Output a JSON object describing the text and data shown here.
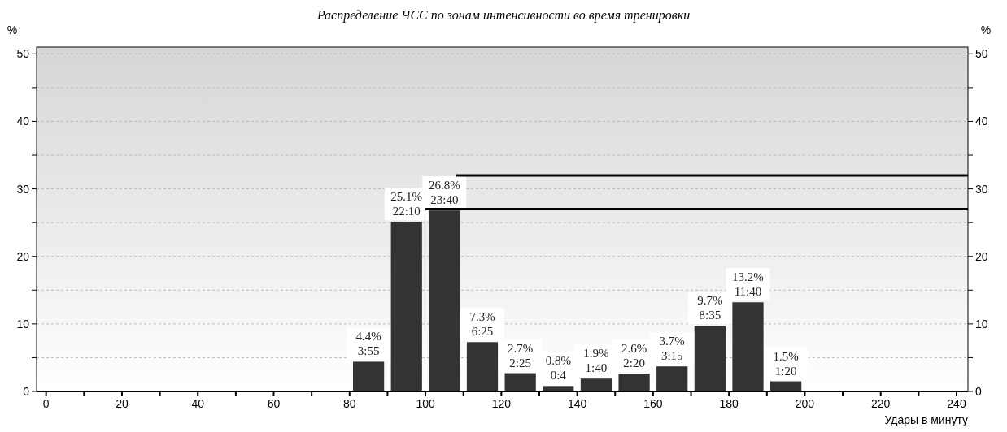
{
  "chart_data": {
    "type": "histogram",
    "title": "Распределение ЧСС по зонам интенсивности во время тренировки",
    "xlabel": "Удары в минуту",
    "ylabel": "%",
    "y2label": "%",
    "bins": [
      80,
      90,
      100,
      110,
      120,
      130,
      140,
      150,
      160,
      170,
      180,
      190,
      200
    ],
    "series": [
      {
        "color": "#333333",
        "values": [
          4.4,
          25.1,
          26.8,
          7.3,
          2.7,
          0.8,
          1.9,
          2.6,
          3.7,
          9.7,
          13.2,
          1.5
        ],
        "value_labels": [
          "4.4%\n3:55",
          "25.1%\n22:10",
          "26.8%\n23:40",
          "7.3%\n6:25",
          "2.7%\n2:25",
          "0.8%\n0:4",
          "1.9%\n1:40",
          "2.6%\n2:20",
          "3.7%\n3:15",
          "9.7%\n8:35",
          "13.2%\n11:40",
          "1.5%\n1:20"
        ]
      },
      {
        "type": "line",
        "color": "#000000",
        "x": [
          100,
          243
        ],
        "values": [
          27,
          27
        ]
      },
      {
        "type": "line",
        "color": "#000000",
        "x": [
          108,
          243
        ],
        "values": [
          32,
          32
        ]
      }
    ],
    "xlim": [
      -2.5,
      243
    ],
    "xticks": [
      0,
      {
        "value": 10,
        "label": null
      },
      20,
      {
        "value": 30,
        "label": null
      },
      40,
      {
        "value": 50,
        "label": null
      },
      60,
      {
        "value": 70,
        "label": null
      },
      80,
      {
        "value": 90,
        "label": null
      },
      100,
      {
        "value": 110,
        "label": null
      },
      120,
      {
        "value": 130,
        "label": null
      },
      140,
      {
        "value": 150,
        "label": null
      },
      160,
      {
        "value": 170,
        "label": null
      },
      180,
      {
        "value": 190,
        "label": null
      },
      200,
      {
        "value": 210,
        "label": null
      },
      220,
      {
        "value": 230,
        "label": null
      },
      240
    ],
    "ylim": [
      0,
      51
    ],
    "yticks": [
      0,
      {
        "value": 5,
        "label": null
      },
      10,
      {
        "value": 15,
        "label": null
      },
      20,
      {
        "value": 25,
        "label": null
      },
      30,
      {
        "value": 35,
        "label": null
      },
      40,
      {
        "value": 45,
        "label": null
      },
      50
    ],
    "y2lim": [
      0,
      51
    ],
    "y2ticks": [
      0,
      {
        "value": 5,
        "label": null
      },
      10,
      {
        "value": 15,
        "label": null
      },
      20,
      {
        "value": 25,
        "label": null
      },
      30,
      {
        "value": 35,
        "label": null
      },
      40,
      {
        "value": 45,
        "label": null
      },
      50
    ],
    "grid": "y"
  }
}
